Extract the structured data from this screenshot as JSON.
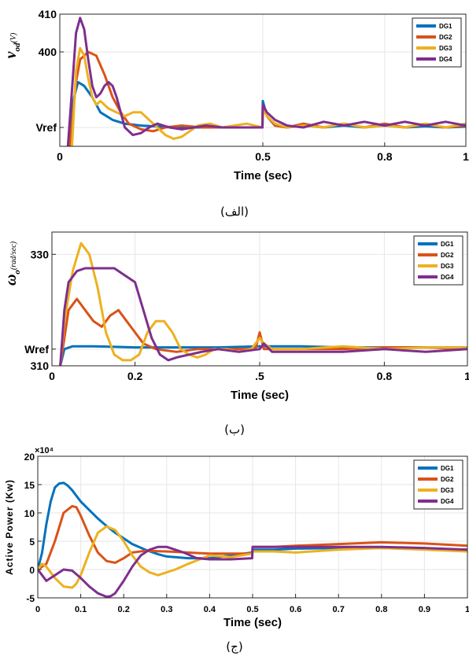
{
  "colors": {
    "DG1": "#0072BD",
    "DG2": "#D95319",
    "DG3": "#EDB120",
    "DG4": "#7E2F8E"
  },
  "chart_data": [
    {
      "type": "line",
      "caption": "(الف)",
      "xlabel": "Time (sec)",
      "ylabel_main": "v",
      "ylabel_sub": "od",
      "ylabel_unit": "(V)",
      "xlim": [
        0,
        1
      ],
      "ylim": [
        375,
        410
      ],
      "x_ticks": [
        {
          "value": 0,
          "label": "0"
        },
        {
          "value": 0.5,
          "label": "0.5"
        },
        {
          "value": 0.8,
          "label": "0.8"
        },
        {
          "value": 1,
          "label": "1"
        }
      ],
      "y_ticks": [
        {
          "value": 410,
          "label": "410"
        },
        {
          "value": 400,
          "label": "400"
        },
        {
          "value": 380,
          "label": "Vref"
        }
      ],
      "legend": [
        "DG1",
        "DG2",
        "DG3",
        "DG4"
      ],
      "legend_position": "top-right",
      "series": [
        {
          "name": "DG1",
          "x": [
            0.02,
            0.035,
            0.045,
            0.06,
            0.08,
            0.1,
            0.13,
            0.16,
            0.2,
            0.25,
            0.3,
            0.35,
            0.4,
            0.45,
            0.499,
            0.5,
            0.51,
            0.53,
            0.56,
            0.6,
            0.65,
            0.7,
            0.75,
            0.8,
            0.85,
            0.9,
            0.95,
            1.0
          ],
          "y": [
            375,
            388,
            392,
            391,
            388,
            384,
            382,
            381,
            380.5,
            380.2,
            380,
            380,
            380,
            380,
            380,
            387,
            383,
            380.5,
            380,
            380.5,
            380,
            380.5,
            380,
            380.5,
            380,
            380.3,
            380,
            380.2
          ]
        },
        {
          "name": "DG2",
          "x": [
            0.025,
            0.04,
            0.05,
            0.07,
            0.09,
            0.11,
            0.13,
            0.15,
            0.17,
            0.2,
            0.23,
            0.26,
            0.3,
            0.35,
            0.4,
            0.45,
            0.499,
            0.5,
            0.51,
            0.53,
            0.56,
            0.6,
            0.65,
            0.7,
            0.75,
            0.8,
            0.85,
            0.9,
            0.95,
            1.0
          ],
          "y": [
            375,
            392,
            398,
            400,
            399,
            394,
            388,
            384,
            381,
            379.5,
            379,
            380,
            380.5,
            380,
            380,
            380,
            380,
            386,
            383,
            380.5,
            380,
            381,
            380,
            381,
            380,
            381,
            380,
            380.8,
            380,
            380.5
          ]
        },
        {
          "name": "DG3",
          "x": [
            0.03,
            0.04,
            0.05,
            0.06,
            0.07,
            0.08,
            0.09,
            0.1,
            0.12,
            0.14,
            0.16,
            0.18,
            0.2,
            0.22,
            0.24,
            0.26,
            0.28,
            0.3,
            0.32,
            0.34,
            0.37,
            0.4,
            0.43,
            0.46,
            0.499,
            0.5,
            0.51,
            0.53,
            0.56,
            0.6,
            0.65,
            0.7,
            0.75,
            0.8,
            0.85,
            0.9,
            0.95,
            1.0
          ],
          "y": [
            375,
            395,
            401,
            399,
            393,
            388,
            386,
            387,
            385,
            384,
            383,
            384,
            384,
            382,
            380,
            378,
            377,
            377.5,
            379,
            380.5,
            381,
            380,
            380.5,
            381,
            380,
            385,
            383,
            381,
            380,
            380.5,
            380,
            381,
            380,
            380.5,
            380,
            381,
            380,
            381
          ]
        },
        {
          "name": "DG4",
          "x": [
            0.02,
            0.03,
            0.04,
            0.05,
            0.06,
            0.07,
            0.08,
            0.09,
            0.1,
            0.11,
            0.12,
            0.13,
            0.14,
            0.15,
            0.16,
            0.18,
            0.2,
            0.22,
            0.24,
            0.27,
            0.3,
            0.33,
            0.36,
            0.4,
            0.45,
            0.499,
            0.5,
            0.51,
            0.53,
            0.56,
            0.6,
            0.65,
            0.7,
            0.75,
            0.8,
            0.85,
            0.9,
            0.95,
            1.0
          ],
          "y": [
            375,
            390,
            405,
            409,
            406,
            398,
            391,
            388,
            389,
            391,
            392,
            391,
            388,
            384,
            380,
            378,
            378.5,
            380,
            381,
            380,
            379.5,
            380,
            380.5,
            380,
            380,
            380,
            386,
            384,
            382,
            380.5,
            380,
            381.5,
            380.5,
            381.5,
            380.5,
            381.5,
            380.5,
            381.5,
            380.5
          ]
        }
      ]
    },
    {
      "type": "line",
      "caption": "(ب)",
      "xlabel": "Time (sec)",
      "ylabel_main": "ω",
      "ylabel_sub": "o",
      "ylabel_unit": "(rad/sec)",
      "xlim": [
        0,
        1
      ],
      "ylim": [
        310,
        334
      ],
      "x_ticks": [
        {
          "value": 0,
          "label": "0"
        },
        {
          "value": 0.2,
          "label": "0.2"
        },
        {
          "value": 0.5,
          "label": ".5"
        },
        {
          "value": 0.8,
          "label": "0.8"
        },
        {
          "value": 1,
          "label": "1"
        }
      ],
      "y_ticks": [
        {
          "value": 330,
          "label": "330"
        },
        {
          "value": 313,
          "label": "Wref"
        },
        {
          "value": 310,
          "label": "310"
        }
      ],
      "legend": [
        "DG1",
        "DG2",
        "DG3",
        "DG4"
      ],
      "legend_position": "top-right",
      "series": [
        {
          "name": "DG1",
          "x": [
            0.02,
            0.03,
            0.05,
            0.1,
            0.2,
            0.3,
            0.4,
            0.5,
            0.6,
            0.7,
            0.8,
            0.9,
            1.0
          ],
          "y": [
            310,
            313,
            313.5,
            313.5,
            313.3,
            313.3,
            313.3,
            313.5,
            313.5,
            313.3,
            313.3,
            313.3,
            313.3
          ]
        },
        {
          "name": "DG2",
          "x": [
            0.02,
            0.04,
            0.06,
            0.08,
            0.1,
            0.12,
            0.14,
            0.16,
            0.18,
            0.2,
            0.22,
            0.25,
            0.3,
            0.35,
            0.4,
            0.45,
            0.49,
            0.5,
            0.51,
            0.53,
            0.6,
            0.7,
            0.8,
            0.9,
            1.0
          ],
          "y": [
            310,
            320,
            322,
            320,
            318,
            317,
            319,
            320,
            318,
            316,
            314,
            313,
            312.5,
            313,
            313,
            313,
            313,
            316,
            313,
            313,
            313,
            313,
            313.3,
            313.3,
            313
          ]
        },
        {
          "name": "DG3",
          "x": [
            0.02,
            0.03,
            0.05,
            0.07,
            0.09,
            0.11,
            0.13,
            0.15,
            0.17,
            0.19,
            0.21,
            0.23,
            0.25,
            0.27,
            0.29,
            0.31,
            0.33,
            0.35,
            0.37,
            0.39,
            0.42,
            0.45,
            0.48,
            0.5,
            0.51,
            0.53,
            0.6,
            0.7,
            0.8,
            0.9,
            1.0
          ],
          "y": [
            310,
            318,
            327,
            332,
            330,
            324,
            316,
            312,
            311,
            311,
            312,
            316,
            318,
            318,
            316,
            313,
            312,
            311.5,
            312,
            313,
            313,
            312.5,
            313,
            315,
            314,
            313,
            313,
            313.5,
            313,
            313.3,
            313.3
          ]
        },
        {
          "name": "DG4",
          "x": [
            0.02,
            0.03,
            0.04,
            0.06,
            0.08,
            0.1,
            0.15,
            0.2,
            0.22,
            0.24,
            0.26,
            0.28,
            0.3,
            0.33,
            0.36,
            0.4,
            0.45,
            0.5,
            0.51,
            0.53,
            0.6,
            0.7,
            0.8,
            0.9,
            1.0
          ],
          "y": [
            310,
            320,
            325,
            327,
            327.5,
            327.5,
            327.5,
            325,
            320,
            315,
            312,
            311,
            311.5,
            312,
            312.5,
            313,
            312.5,
            313,
            314,
            312.5,
            312.5,
            312.5,
            313,
            312.5,
            313
          ]
        }
      ]
    },
    {
      "type": "line",
      "caption": "(ج)",
      "xlabel": "Time (sec)",
      "ylabel": "Active Power (Kw)",
      "exponent_label": "×10⁴",
      "xlim": [
        0,
        1
      ],
      "ylim": [
        -5,
        20
      ],
      "x_ticks": [
        {
          "value": 0,
          "label": "0"
        },
        {
          "value": 0.1,
          "label": "0.1"
        },
        {
          "value": 0.2,
          "label": "0.2"
        },
        {
          "value": 0.3,
          "label": "0.3"
        },
        {
          "value": 0.4,
          "label": "0.4"
        },
        {
          "value": 0.5,
          "label": "0.5"
        },
        {
          "value": 0.6,
          "label": "0.6"
        },
        {
          "value": 0.7,
          "label": "0.7"
        },
        {
          "value": 0.8,
          "label": "0.8"
        },
        {
          "value": 0.9,
          "label": "0.9"
        },
        {
          "value": 1,
          "label": "1"
        }
      ],
      "y_ticks": [
        {
          "value": 20,
          "label": "20"
        },
        {
          "value": 15,
          "label": "15"
        },
        {
          "value": 10,
          "label": "10"
        },
        {
          "value": 5,
          "label": "5"
        },
        {
          "value": 0,
          "label": "0"
        },
        {
          "value": -5,
          "label": "-5"
        }
      ],
      "legend": [
        "DG1",
        "DG2",
        "DG3",
        "DG4"
      ],
      "legend_position": "top-right",
      "series": [
        {
          "name": "DG1",
          "x": [
            0,
            0.01,
            0.02,
            0.03,
            0.04,
            0.05,
            0.06,
            0.07,
            0.08,
            0.1,
            0.12,
            0.14,
            0.16,
            0.18,
            0.2,
            0.22,
            0.25,
            0.28,
            0.3,
            0.35,
            0.4,
            0.45,
            0.499,
            0.5,
            0.55,
            0.6,
            0.7,
            0.8,
            0.9,
            1.0
          ],
          "y": [
            0,
            3,
            8,
            12,
            14.5,
            15.2,
            15.3,
            14.8,
            14,
            12,
            10.5,
            9,
            7.7,
            6.5,
            5.5,
            4.5,
            3.5,
            2.7,
            2.3,
            2,
            2,
            2.5,
            3,
            3.5,
            3.5,
            3.7,
            3.8,
            3.8,
            3.7,
            3.5
          ]
        },
        {
          "name": "DG2",
          "x": [
            0,
            0.02,
            0.04,
            0.06,
            0.08,
            0.09,
            0.1,
            0.12,
            0.14,
            0.16,
            0.18,
            0.2,
            0.22,
            0.25,
            0.3,
            0.35,
            0.4,
            0.45,
            0.499,
            0.5,
            0.55,
            0.6,
            0.7,
            0.8,
            0.9,
            1.0
          ],
          "y": [
            0,
            1,
            5,
            10,
            11.2,
            11,
            9.5,
            6,
            3,
            1.5,
            1.2,
            2,
            3,
            3.3,
            3.2,
            3,
            2.8,
            2.8,
            2.8,
            4,
            4,
            4.2,
            4.5,
            4.8,
            4.6,
            4.2
          ]
        },
        {
          "name": "DG3",
          "x": [
            0,
            0.01,
            0.02,
            0.04,
            0.06,
            0.08,
            0.09,
            0.1,
            0.12,
            0.14,
            0.16,
            0.18,
            0.2,
            0.22,
            0.24,
            0.26,
            0.28,
            0.3,
            0.32,
            0.35,
            0.4,
            0.45,
            0.499,
            0.5,
            0.55,
            0.6,
            0.7,
            0.8,
            0.9,
            1.0
          ],
          "y": [
            0,
            1,
            0.5,
            -1.5,
            -3,
            -3.2,
            -2.5,
            -1,
            3,
            6.5,
            7.6,
            7,
            5,
            2.5,
            0.5,
            -0.5,
            -1,
            -0.5,
            0,
            1,
            2.5,
            2.2,
            2.8,
            3.2,
            3.2,
            3,
            3.5,
            3.8,
            3.5,
            3.2
          ]
        },
        {
          "name": "DG4",
          "x": [
            0,
            0.01,
            0.02,
            0.04,
            0.06,
            0.08,
            0.1,
            0.12,
            0.14,
            0.16,
            0.17,
            0.18,
            0.2,
            0.22,
            0.24,
            0.26,
            0.28,
            0.3,
            0.32,
            0.34,
            0.37,
            0.4,
            0.45,
            0.499,
            0.5,
            0.55,
            0.6,
            0.7,
            0.8,
            0.9,
            1.0
          ],
          "y": [
            0,
            -1,
            -2,
            -1,
            0,
            -0.2,
            -1.5,
            -3,
            -4.2,
            -4.8,
            -4.7,
            -4.2,
            -2,
            0.5,
            2.5,
            3.5,
            4,
            4,
            3.5,
            3,
            2,
            1.8,
            1.8,
            2,
            4,
            4,
            4,
            4,
            4,
            3.8,
            3.5
          ]
        }
      ]
    }
  ]
}
